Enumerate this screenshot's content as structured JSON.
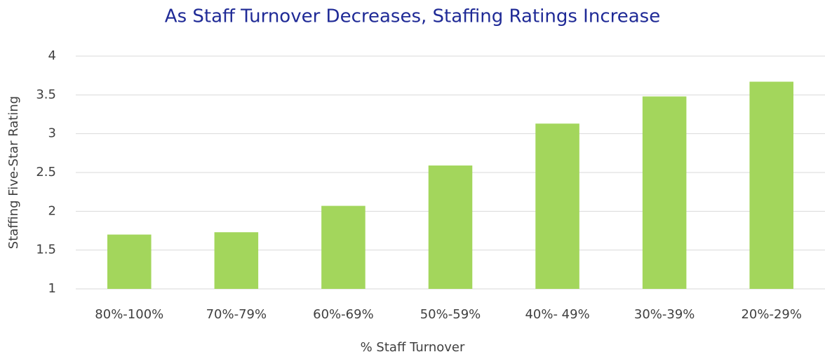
{
  "chart_data": {
    "type": "bar",
    "title": "As Staff Turnover Decreases, Staffing Ratings Increase",
    "x_label": "% Staff Turnover",
    "y_label": "Staffing Five-Star Rating",
    "categories": [
      "80%-100%",
      "70%-79%",
      "60%-69%",
      "50%-59%",
      "40%- 49%",
      "30%-39%",
      "20%-29%"
    ],
    "values": [
      1.7,
      1.73,
      2.07,
      2.59,
      3.13,
      3.48,
      3.67
    ],
    "color": "#a3d65c",
    "ylim": [
      1,
      4
    ],
    "yticks": [
      1,
      1.5,
      2,
      2.5,
      3,
      3.5,
      4
    ],
    "grid": true
  }
}
